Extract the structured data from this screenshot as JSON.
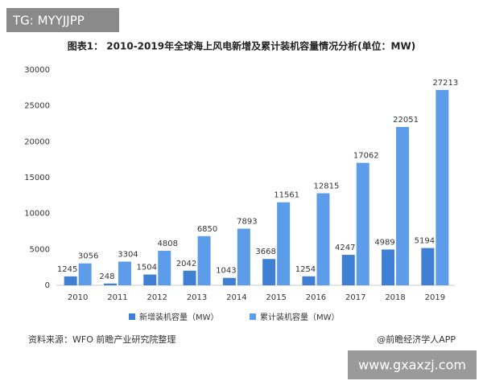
{
  "watermark": "TG: MYYJJPP",
  "chart_data": {
    "type": "bar",
    "title": "图表1： 2010-2019年全球海上风电新增及累计装机容量情况分析(单位：MW)",
    "categories": [
      "2010",
      "2011",
      "2012",
      "2013",
      "2014",
      "2015",
      "2016",
      "2017",
      "2018",
      "2019"
    ],
    "series": [
      {
        "name": "新增装机容量（MW）",
        "color": "#3f7fd4",
        "values": [
          1245,
          248,
          1504,
          2042,
          1043,
          3668,
          1254,
          4247,
          4989,
          5194
        ]
      },
      {
        "name": "累计装机容量（MW）",
        "color": "#5d9ce8",
        "values": [
          3056,
          3304,
          4808,
          6850,
          7893,
          11561,
          12815,
          17062,
          22051,
          27213
        ]
      }
    ],
    "ylim": [
      0,
      30000
    ],
    "yticks": [
      0,
      5000,
      10000,
      15000,
      20000,
      25000,
      30000
    ],
    "grid": false,
    "legend": "bottom"
  },
  "source": "资料来源：WFO 前瞻产业研究院整理",
  "credit": "@前瞻经济学人APP",
  "site": "www.gxaxzj.com"
}
